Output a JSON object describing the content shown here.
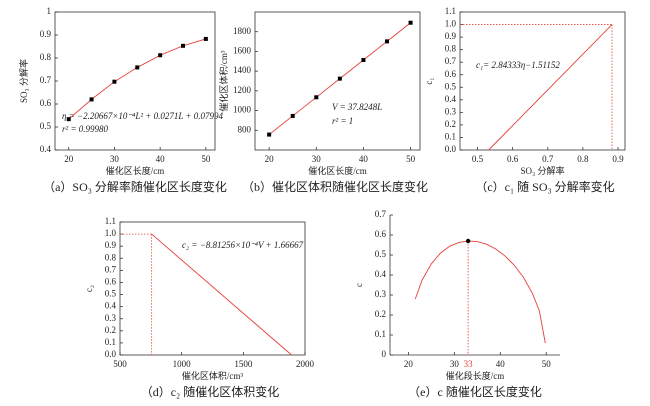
{
  "chart_data": [
    {
      "type": "scatter",
      "caption": "（a）SO₃ 分解率随催化区长度变化",
      "xlabel": "催化区长度/cm",
      "ylabel": "SO₃ 分解率",
      "x": [
        20,
        25,
        30,
        35,
        40,
        45,
        50
      ],
      "values": [
        0.534,
        0.62,
        0.697,
        0.759,
        0.812,
        0.853,
        0.883
      ],
      "color": "#000000",
      "fit_color": "#e8403a",
      "frame": "box",
      "xlim": [
        17,
        52
      ],
      "xticks": [
        20,
        30,
        40,
        50
      ],
      "ylim": [
        0.4,
        1
      ],
      "yticks": [
        0.4,
        0.5,
        0.6,
        0.7,
        0.8,
        0.9,
        1
      ],
      "annotations": [
        "η = −2.20667×10⁻⁴L² + 0.0271L + 0.07994",
        "r² = 0.99980"
      ]
    },
    {
      "type": "scatter",
      "caption": "（b）催化区体积随催化区长度变化",
      "xlabel": "催化区长度/cm",
      "ylabel": "催化区体积/cm³",
      "x": [
        20,
        25,
        30,
        35,
        40,
        45,
        50
      ],
      "values": [
        756.5,
        945.6,
        1134.7,
        1323.9,
        1513,
        1702.1,
        1891.2
      ],
      "color": "#000000",
      "fit_color": "#e8403a",
      "frame": "box",
      "xlim": [
        17,
        52
      ],
      "xticks": [
        20,
        30,
        40,
        50
      ],
      "ylim": [
        600,
        2000
      ],
      "yticks": [
        800,
        1000,
        1200,
        1400,
        1600,
        1800
      ],
      "annotations": [
        "V = 37.8248L",
        "r² = 1"
      ]
    },
    {
      "type": "line",
      "caption": "（c）c₁ 随 SO₃ 分解率变化",
      "xlabel": "SO₃ 分解率",
      "ylabel": "c₁",
      "x": [
        0.5316,
        0.883
      ],
      "values": [
        0,
        1
      ],
      "color": "#e8403a",
      "frame": "box",
      "ref_x": 0.883,
      "ref_y": 1,
      "ref_color": "#e8403a",
      "xlim": [
        0.45,
        0.92
      ],
      "xticks": [
        0.5,
        0.6,
        0.7,
        0.8,
        0.9
      ],
      "ylim": [
        0,
        1.1
      ],
      "yticks": [
        {
          "value": 0,
          "label": "0.0"
        },
        0.1,
        0.2,
        0.3,
        0.4,
        0.5,
        0.6,
        0.7,
        0.8,
        0.9,
        {
          "value": 1,
          "label": "1.0"
        },
        1.1
      ],
      "annotations": [
        "c₁= 2.84333η−1.51152"
      ]
    },
    {
      "type": "line",
      "caption": "（d）c₂ 随催化区体积变化",
      "xlabel": "催化区体积/cm³",
      "ylabel": "c₂",
      "x": [
        756.5,
        1891.2
      ],
      "values": [
        1,
        0
      ],
      "color": "#e8403a",
      "frame": "box",
      "ref_x": 756.5,
      "ref_y": 1,
      "ref_color": "#e8403a",
      "xlim": [
        500,
        2000
      ],
      "xticks": [
        500,
        1000,
        1500,
        2000
      ],
      "ylim": [
        0,
        1.1
      ],
      "yticks": [
        {
          "value": 0,
          "label": "0.0"
        },
        0.1,
        0.2,
        0.3,
        0.4,
        0.5,
        0.6,
        0.7,
        0.8,
        0.9,
        {
          "value": 1,
          "label": "1.0"
        },
        1.1
      ],
      "annotations": [
        "c₂ = −8.81256×10⁻⁴V + 1.66667"
      ]
    },
    {
      "type": "line",
      "caption": "（e）c 随催化区长度变化",
      "xlabel": "催化段长度/cm",
      "ylabel": "c",
      "x": [
        21.5,
        23,
        25,
        27,
        29,
        31,
        33,
        35,
        37,
        39,
        41,
        43,
        45,
        47,
        48.5,
        49.8
      ],
      "values": [
        0.28,
        0.375,
        0.456,
        0.51,
        0.544,
        0.563,
        0.57,
        0.567,
        0.554,
        0.53,
        0.496,
        0.45,
        0.39,
        0.308,
        0.221,
        0.06
      ],
      "color": "#e8403a",
      "frame": "axes",
      "peak": {
        "x": 33,
        "y": 0.57
      },
      "ref_color": "#e8403a",
      "xlim": [
        16,
        53
      ],
      "xticks": [
        20,
        30,
        40,
        50
      ],
      "ylim": [
        0,
        0.7
      ],
      "yticks": [
        0,
        0.1,
        0.2,
        0.3,
        0.4,
        0.5,
        0.6,
        0.7
      ],
      "annotations": []
    }
  ]
}
